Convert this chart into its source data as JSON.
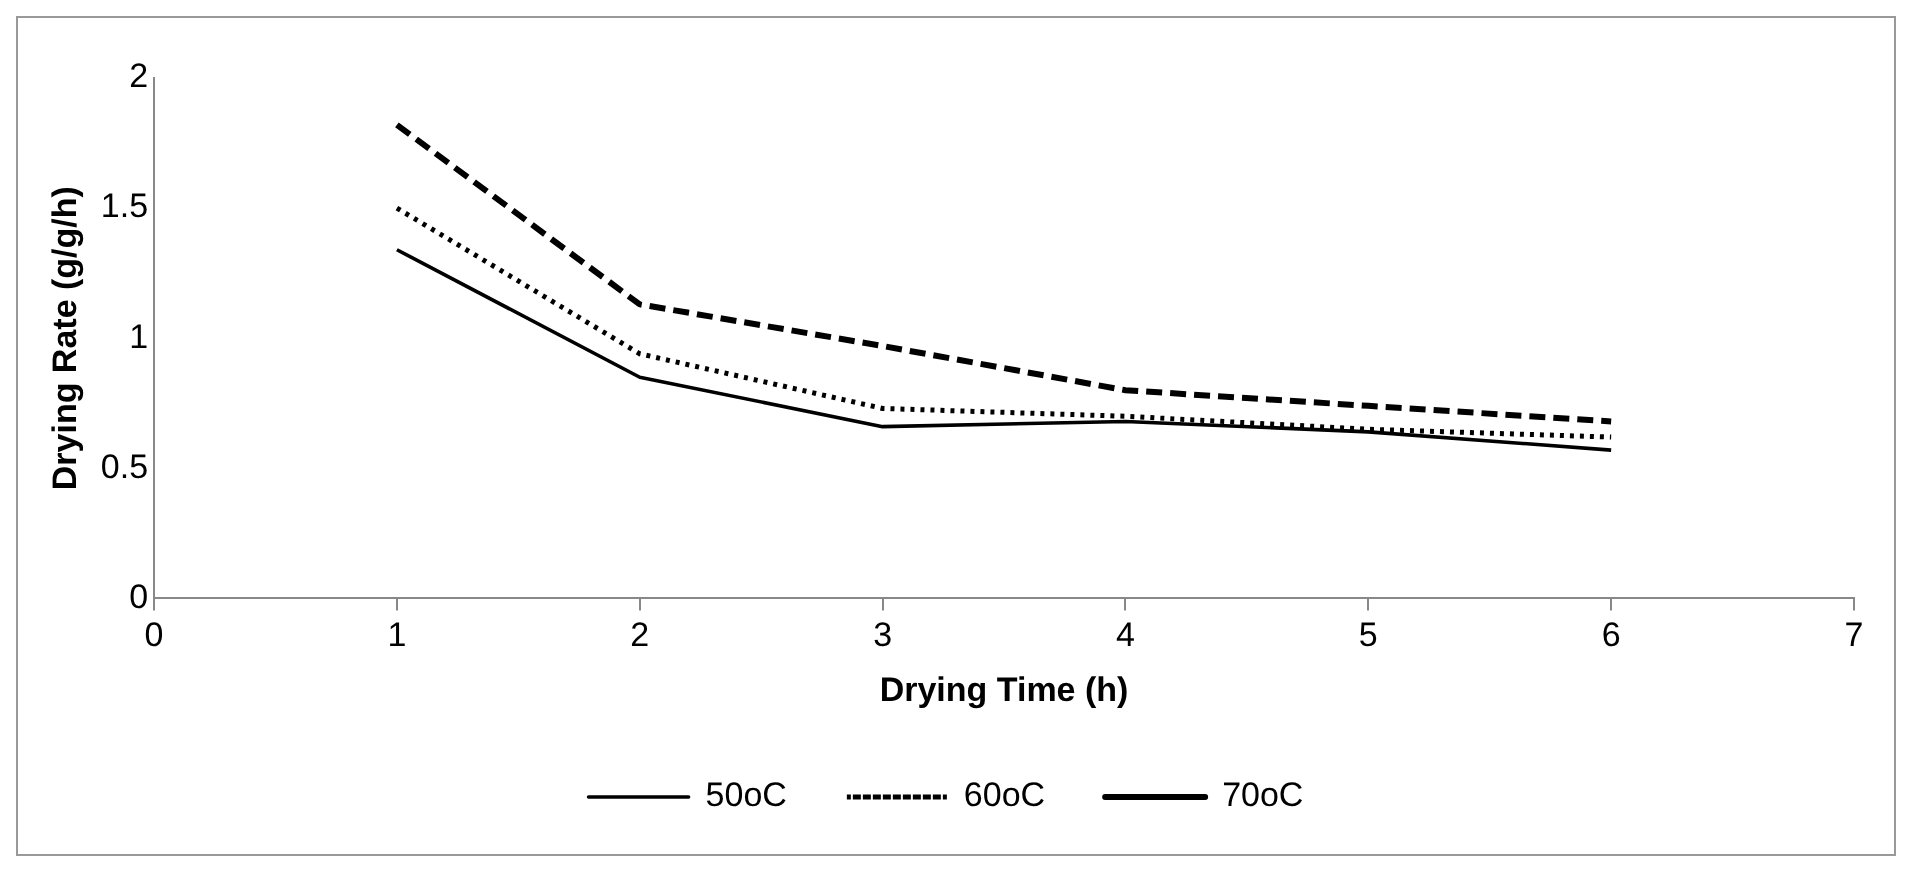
{
  "chart_data": {
    "type": "line",
    "xlabel": "Drying Time (h)",
    "ylabel": "Drying Rate (g/g/h)",
    "x": [
      1,
      2,
      3,
      4,
      5,
      6
    ],
    "series": [
      {
        "name": "50oC",
        "color": "#000000",
        "line_style": "solid",
        "values": [
          1.34,
          0.85,
          0.66,
          0.68,
          0.64,
          0.57
        ]
      },
      {
        "name": "60oC",
        "color": "#000000",
        "line_style": "dotted",
        "values": [
          1.5,
          0.94,
          0.73,
          0.7,
          0.65,
          0.62
        ]
      },
      {
        "name": "70oC",
        "color": "#000000",
        "line_style": "dashed",
        "values": [
          1.82,
          1.13,
          0.97,
          0.8,
          0.74,
          0.68
        ]
      }
    ],
    "xlim": [
      0,
      7
    ],
    "xticks": [
      0,
      1,
      2,
      3,
      4,
      5,
      6,
      7
    ],
    "ylim": [
      0,
      2
    ],
    "yticks": [
      0,
      0.5,
      1,
      1.5,
      2
    ],
    "grid": false,
    "legend": "bottom",
    "marker": "none"
  }
}
